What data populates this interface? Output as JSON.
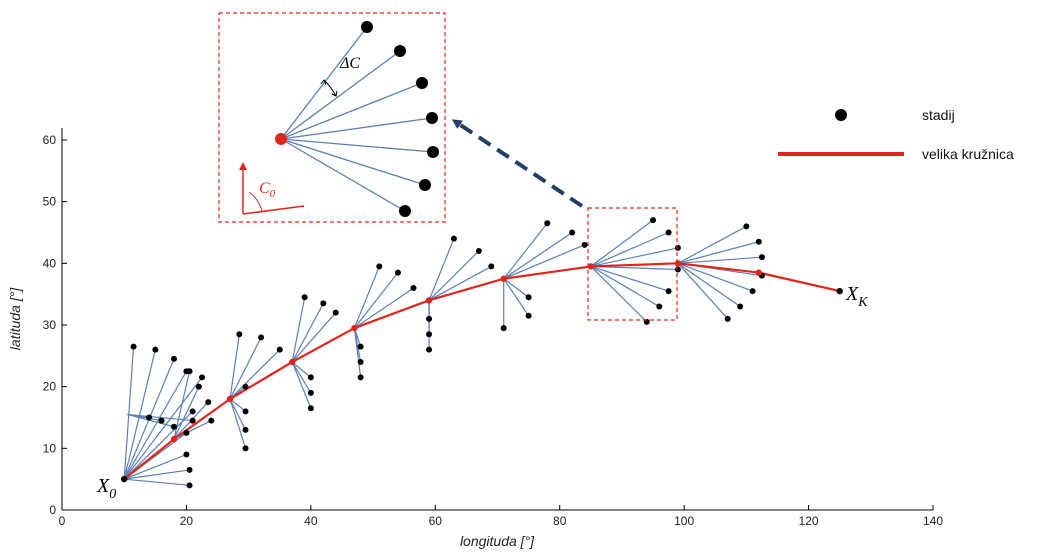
{
  "axes": {
    "xlabel": "longituda [°]",
    "ylabel": "latituda [°]",
    "xlim": [
      0,
      140
    ],
    "ylim": [
      0,
      65
    ],
    "xticks": [
      "0",
      "20",
      "40",
      "60",
      "80",
      "100",
      "120",
      "140"
    ],
    "yticks": [
      "0",
      "10",
      "20",
      "30",
      "40",
      "50",
      "60"
    ]
  },
  "legend": {
    "stage_label": "stadij",
    "great_circle_label": "velika kružnica",
    "placement": "top-right"
  },
  "labels": {
    "start": "X",
    "start_sub": "0",
    "end": "X",
    "end_sub": "K",
    "inset_delta": "ΔC",
    "inset_course": "C",
    "inset_course_sub": "0"
  },
  "colors": {
    "route": "#e0261c",
    "branch": "#5b7fb5",
    "stage": "#000000",
    "highlight_box": "#e0261c",
    "arrow": "#1f3f66"
  },
  "chart_data": {
    "type": "scatter",
    "x_label": "longituda [°]",
    "y_label": "latituda [°]",
    "route": [
      [
        10,
        5
      ],
      [
        18,
        11.5
      ],
      [
        27,
        18
      ],
      [
        37,
        24
      ],
      [
        47,
        29.5
      ],
      [
        59,
        34
      ],
      [
        71,
        37.5
      ],
      [
        85,
        39.5
      ],
      [
        99,
        40
      ],
      [
        112,
        38.5
      ],
      [
        125,
        35.5
      ]
    ],
    "fans": [
      {
        "origin": [
          10,
          5
        ],
        "ends": [
          [
            11.5,
            26.5
          ],
          [
            15,
            26
          ],
          [
            18,
            24.5
          ],
          [
            20,
            22.5
          ],
          [
            22.5,
            21.5
          ],
          [
            21,
            16
          ],
          [
            20,
            12.5
          ],
          [
            20,
            9
          ],
          [
            20.5,
            6.5
          ],
          [
            20.5,
            4
          ]
        ]
      },
      {
        "origin": [
          10.5,
          15.5
        ],
        "ends": [
          [
            14,
            15
          ],
          [
            16,
            14.5
          ],
          [
            18,
            13.5
          ],
          [
            21,
            14.5
          ]
        ]
      },
      {
        "origin": [
          18,
          11.5
        ],
        "ends": [
          [
            20.5,
            22.5
          ],
          [
            22,
            20
          ],
          [
            23.5,
            17.5
          ],
          [
            24,
            14.5
          ]
        ]
      },
      {
        "origin": [
          27,
          18
        ],
        "ends": [
          [
            28.5,
            28.5
          ],
          [
            32,
            28
          ],
          [
            35,
            26
          ],
          [
            29.5,
            20
          ],
          [
            29.5,
            16
          ],
          [
            29.5,
            13
          ],
          [
            29.5,
            10
          ]
        ]
      },
      {
        "origin": [
          37,
          24
        ],
        "ends": [
          [
            39,
            34.5
          ],
          [
            42,
            33.5
          ],
          [
            44,
            32
          ],
          [
            40,
            21.5
          ],
          [
            40,
            19
          ],
          [
            40,
            16.5
          ]
        ]
      },
      {
        "origin": [
          47,
          29.5
        ],
        "ends": [
          [
            51,
            39.5
          ],
          [
            54,
            38.5
          ],
          [
            56.5,
            36
          ],
          [
            48,
            26.5
          ],
          [
            48,
            24
          ],
          [
            48,
            21.5
          ]
        ]
      },
      {
        "origin": [
          59,
          34
        ],
        "ends": [
          [
            63,
            44
          ],
          [
            67,
            42
          ],
          [
            69,
            39.5
          ],
          [
            59,
            31
          ],
          [
            59,
            28.5
          ],
          [
            59,
            26
          ]
        ]
      },
      {
        "origin": [
          71,
          37.5
        ],
        "ends": [
          [
            78,
            46.5
          ],
          [
            82,
            45
          ],
          [
            84,
            43
          ],
          [
            75,
            34.5
          ],
          [
            75,
            31.5
          ],
          [
            71,
            29.5
          ]
        ]
      },
      {
        "origin": [
          85,
          39.5
        ],
        "ends": [
          [
            95,
            47
          ],
          [
            97.5,
            45
          ],
          [
            99,
            42.5
          ],
          [
            99,
            39
          ],
          [
            97.5,
            35.5
          ],
          [
            96,
            33
          ],
          [
            94,
            30.5
          ]
        ]
      },
      {
        "origin": [
          99,
          40
        ],
        "ends": [
          [
            110,
            46
          ],
          [
            112,
            43.5
          ],
          [
            112.5,
            41
          ],
          [
            112.5,
            38
          ],
          [
            111,
            35.5
          ],
          [
            109,
            33
          ],
          [
            107,
            31
          ]
        ]
      }
    ]
  }
}
